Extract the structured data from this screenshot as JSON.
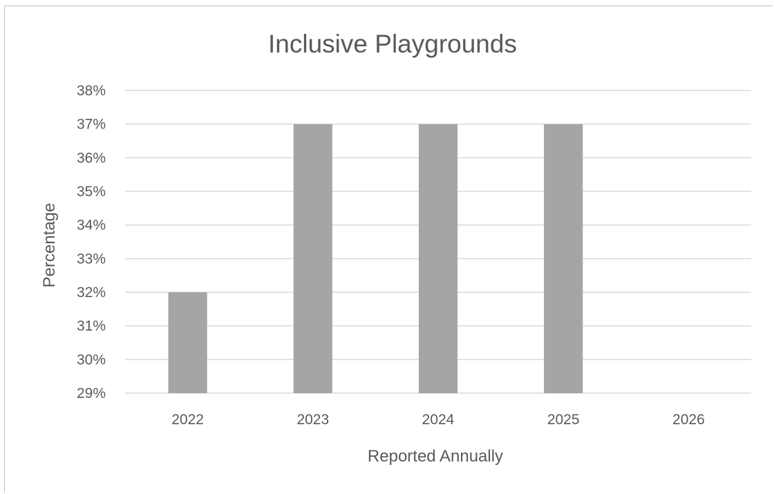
{
  "chart_data": {
    "type": "bar",
    "title": "Inclusive Playgrounds",
    "xlabel": "Reported Annually",
    "ylabel": "Percentage",
    "categories": [
      "2022",
      "2023",
      "2024",
      "2025",
      "2026"
    ],
    "values": [
      32,
      37,
      37,
      37,
      null
    ],
    "ylim": [
      29,
      38
    ],
    "yticks": [
      29,
      30,
      31,
      32,
      33,
      34,
      35,
      36,
      37,
      38
    ],
    "ytick_labels": [
      "29%",
      "30%",
      "31%",
      "32%",
      "33%",
      "34%",
      "35%",
      "36%",
      "37%",
      "38%"
    ],
    "grid": true,
    "legend": "none",
    "bar_color": "#a5a5a5"
  }
}
